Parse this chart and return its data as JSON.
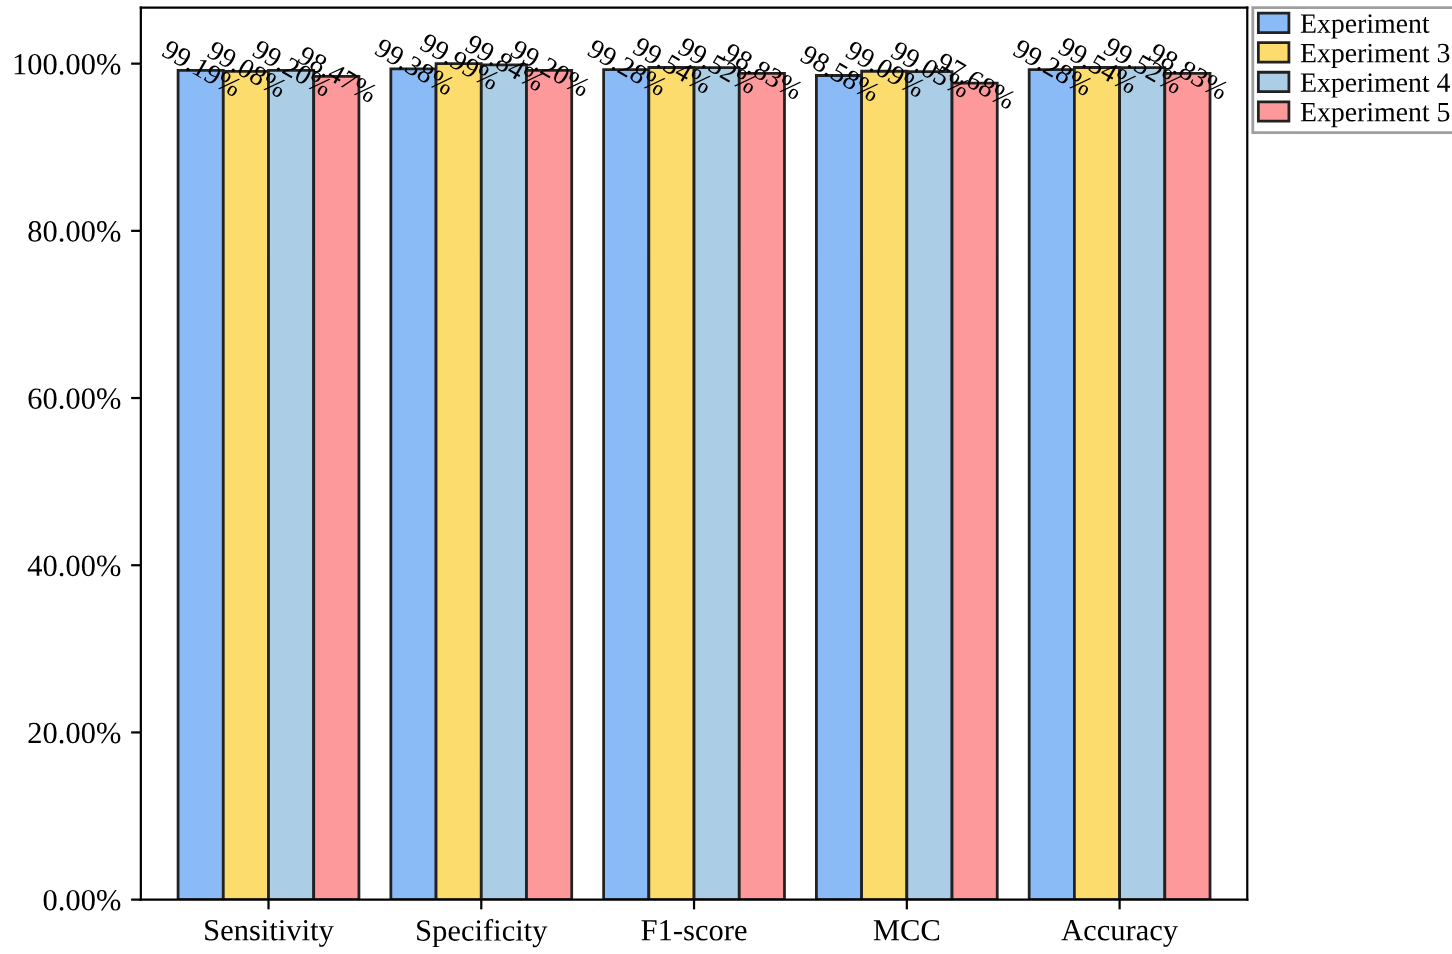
{
  "chart_data": {
    "type": "bar",
    "categories": [
      "Sensitivity",
      "Specificity",
      "F1-score",
      "MCC",
      "Accuracy"
    ],
    "series": [
      {
        "name": "Experiment",
        "color": "#8bbbf7",
        "values": [
          99.19,
          99.38,
          99.28,
          98.58,
          99.28
        ],
        "value_labels": [
          "99.19%",
          "99.38%",
          "99.28%",
          "98.58%",
          "99.28%"
        ]
      },
      {
        "name": "Experiment 3",
        "color": "#fddc6e",
        "values": [
          99.08,
          99.99,
          99.54,
          99.09,
          99.54
        ],
        "value_labels": [
          "99.08%",
          "99.99%",
          "99.54%",
          "99.09%",
          "99.54%"
        ]
      },
      {
        "name": "Experiment 4",
        "color": "#abcde6",
        "values": [
          99.2,
          99.84,
          99.52,
          99.05,
          99.52
        ],
        "value_labels": [
          "99.20%",
          "99.84%",
          "99.52%",
          "99.05%",
          "99.52%"
        ]
      },
      {
        "name": "Experiment 5",
        "color": "#fd999a",
        "values": [
          98.47,
          99.2,
          98.83,
          97.68,
          98.83
        ],
        "value_labels": [
          "98.47%",
          "99.20%",
          "98.83%",
          "97.68%",
          "98.83%"
        ]
      }
    ],
    "ylim": [
      0,
      106.7
    ],
    "yticks": [
      {
        "value": 0,
        "label": "0.00%"
      },
      {
        "value": 20,
        "label": "20.00%"
      },
      {
        "value": 40,
        "label": "40.00%"
      },
      {
        "value": 60,
        "label": "60.00%"
      },
      {
        "value": 80,
        "label": "80.00%"
      },
      {
        "value": 100,
        "label": "100.00%"
      }
    ],
    "legend": "top right",
    "grid": false
  }
}
